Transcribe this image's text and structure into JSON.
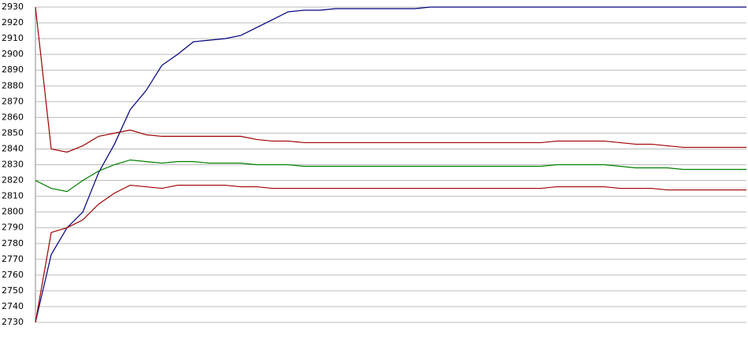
{
  "chart_data": {
    "type": "line",
    "ylim": [
      2730,
      2930
    ],
    "yticks": [
      2730,
      2740,
      2750,
      2760,
      2770,
      2780,
      2790,
      2800,
      2810,
      2820,
      2830,
      2840,
      2850,
      2860,
      2870,
      2880,
      2890,
      2900,
      2910,
      2920,
      2930
    ],
    "grid": true,
    "series": [
      {
        "color": "#000080",
        "values": [
          2730,
          2773,
          2790,
          2800,
          2825,
          2843,
          2865,
          2877,
          2893,
          2900,
          2908,
          2909,
          2910,
          2912,
          2917,
          2922,
          2927,
          2928,
          2928,
          2929,
          2929,
          2929,
          2929,
          2929,
          2929,
          2930,
          2930,
          2930,
          2930,
          2930,
          2930,
          2930,
          2930,
          2930,
          2930,
          2930,
          2930,
          2930,
          2930,
          2930,
          2930,
          2930,
          2930,
          2930,
          2930,
          2930
        ]
      },
      {
        "color": "#a00000",
        "values": [
          2930,
          2840,
          2838,
          2842,
          2848,
          2850,
          2852,
          2849,
          2848,
          2848,
          2848,
          2848,
          2848,
          2848,
          2846,
          2845,
          2845,
          2844,
          2844,
          2844,
          2844,
          2844,
          2844,
          2844,
          2844,
          2844,
          2844,
          2844,
          2844,
          2844,
          2844,
          2844,
          2844,
          2845,
          2845,
          2845,
          2845,
          2844,
          2843,
          2843,
          2842,
          2841,
          2841,
          2841,
          2841,
          2841
        ]
      },
      {
        "color": "#008000",
        "values": [
          2820,
          2815,
          2813,
          2820,
          2826,
          2830,
          2833,
          2832,
          2831,
          2832,
          2832,
          2831,
          2831,
          2831,
          2830,
          2830,
          2830,
          2829,
          2829,
          2829,
          2829,
          2829,
          2829,
          2829,
          2829,
          2829,
          2829,
          2829,
          2829,
          2829,
          2829,
          2829,
          2829,
          2830,
          2830,
          2830,
          2830,
          2829,
          2828,
          2828,
          2828,
          2827,
          2827,
          2827,
          2827,
          2827
        ]
      },
      {
        "color": "#a00000",
        "values": [
          2730,
          2787,
          2790,
          2795,
          2805,
          2812,
          2817,
          2816,
          2815,
          2817,
          2817,
          2817,
          2817,
          2816,
          2816,
          2815,
          2815,
          2815,
          2815,
          2815,
          2815,
          2815,
          2815,
          2815,
          2815,
          2815,
          2815,
          2815,
          2815,
          2815,
          2815,
          2815,
          2815,
          2816,
          2816,
          2816,
          2816,
          2815,
          2815,
          2815,
          2814,
          2814,
          2814,
          2814,
          2814,
          2814
        ]
      }
    ]
  }
}
